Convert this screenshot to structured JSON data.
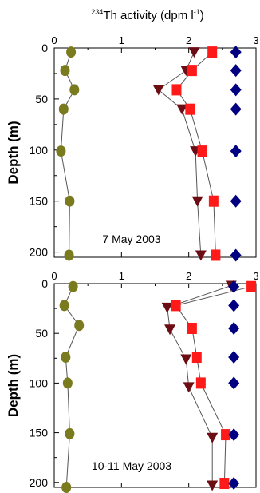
{
  "figure": {
    "title_main": "Th activity (dpm l",
    "title_sup_mass": "234",
    "title_sup_exp": "-1",
    "title_close": ")"
  },
  "colors": {
    "circle": "#7a7a1e",
    "triangle": "#6b0d12",
    "square": "#ff1a1a",
    "diamond": "#000080",
    "line": "#555555",
    "axis": "#000000"
  },
  "chart_data": [
    {
      "type": "line",
      "panel": "top",
      "annotation": "7 May 2003",
      "xlabel": "234Th activity (dpm l-1)",
      "ylabel": "Depth (m)",
      "xlim": [
        0,
        3
      ],
      "ylim": [
        0,
        205
      ],
      "y_inverted": true,
      "x_ticks": [
        0,
        1,
        2,
        3
      ],
      "y_ticks": [
        0,
        50,
        100,
        150,
        200
      ],
      "series": [
        {
          "marker": "circle",
          "color": "#7a7a1e",
          "connected": true,
          "points": [
            [
              0.25,
              4
            ],
            [
              0.16,
              22
            ],
            [
              0.3,
              41
            ],
            [
              0.14,
              60
            ],
            [
              0.1,
              101
            ],
            [
              0.23,
              150
            ],
            [
              0.22,
              203
            ]
          ]
        },
        {
          "marker": "triangle",
          "color": "#6b0d12",
          "connected": true,
          "points": [
            [
              2.08,
              4
            ],
            [
              1.96,
              22
            ],
            [
              1.55,
              41
            ],
            [
              1.9,
              60
            ],
            [
              2.1,
              101
            ],
            [
              2.13,
              150
            ],
            [
              2.18,
              203
            ]
          ]
        },
        {
          "marker": "square",
          "color": "#ff1a1a",
          "connected": true,
          "points": [
            [
              2.35,
              4
            ],
            [
              2.05,
              22
            ],
            [
              1.82,
              41
            ],
            [
              2.02,
              60
            ],
            [
              2.2,
              101
            ],
            [
              2.37,
              150
            ],
            [
              2.4,
              203
            ]
          ]
        },
        {
          "marker": "diamond",
          "color": "#000080",
          "connected": false,
          "points": [
            [
              2.7,
              4
            ],
            [
              2.7,
              22
            ],
            [
              2.7,
              41
            ],
            [
              2.7,
              60
            ],
            [
              2.7,
              101
            ],
            [
              2.7,
              150
            ],
            [
              2.7,
              203
            ]
          ]
        }
      ]
    },
    {
      "type": "line",
      "panel": "bottom",
      "annotation": "10-11 May 2003",
      "xlabel": "",
      "ylabel": "Depth (m)",
      "xlim": [
        0,
        3
      ],
      "ylim": [
        0,
        205
      ],
      "y_inverted": true,
      "x_ticks": [
        0,
        1,
        2,
        3
      ],
      "y_ticks": [
        0,
        50,
        100,
        150,
        200
      ],
      "series": [
        {
          "marker": "circle",
          "color": "#7a7a1e",
          "connected": true,
          "points": [
            [
              0.28,
              3
            ],
            [
              0.15,
              22
            ],
            [
              0.37,
              42
            ],
            [
              0.17,
              74
            ],
            [
              0.2,
              100
            ],
            [
              0.23,
              151
            ],
            [
              0.18,
              205
            ]
          ]
        },
        {
          "marker": "triangle",
          "color": "#6b0d12",
          "connected": true,
          "points": [
            [
              2.63,
              2
            ],
            [
              1.68,
              24
            ],
            [
              1.72,
              46
            ],
            [
              1.96,
              76
            ],
            [
              2.0,
              104
            ],
            [
              2.35,
              155
            ],
            [
              2.35,
              203
            ]
          ]
        },
        {
          "marker": "square",
          "color": "#ff1a1a",
          "connected": true,
          "points": [
            [
              2.93,
              3
            ],
            [
              1.81,
              22
            ],
            [
              2.05,
              45
            ],
            [
              2.12,
              74
            ],
            [
              2.18,
              100
            ],
            [
              2.55,
              152
            ],
            [
              2.53,
              201
            ]
          ]
        },
        {
          "marker": "diamond",
          "color": "#000080",
          "connected": false,
          "points": [
            [
              2.67,
              3
            ],
            [
              2.67,
              22
            ],
            [
              2.67,
              45
            ],
            [
              2.67,
              74
            ],
            [
              2.67,
              100
            ],
            [
              2.67,
              152
            ],
            [
              2.67,
              201
            ]
          ]
        }
      ]
    }
  ]
}
